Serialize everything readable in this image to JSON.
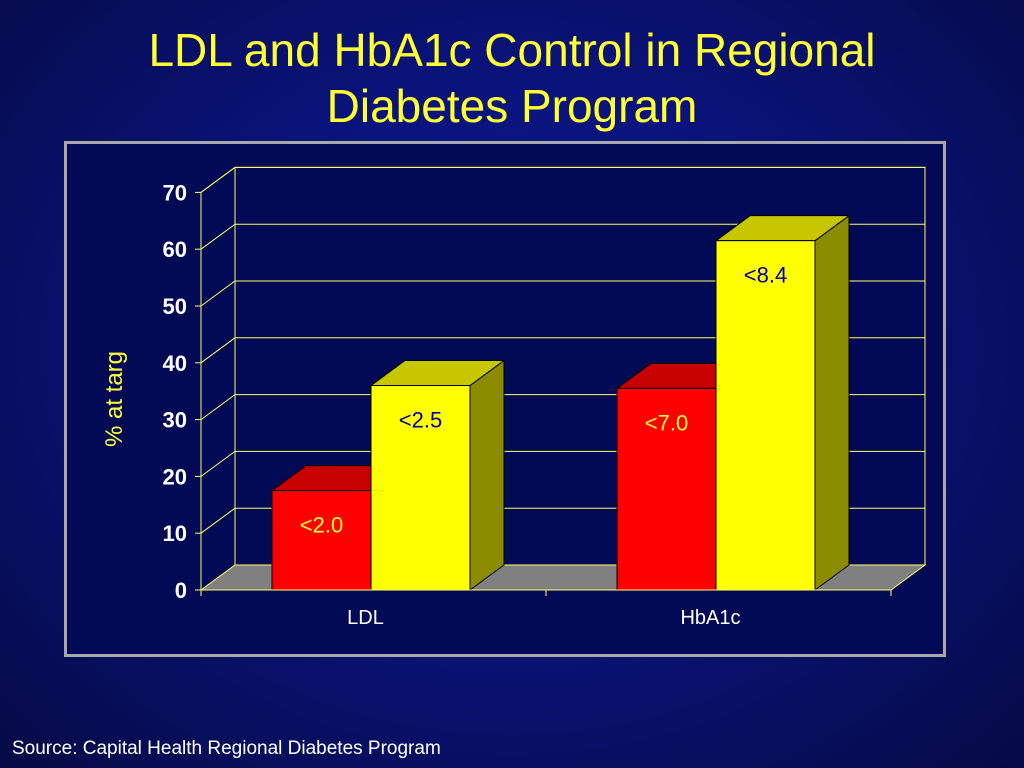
{
  "slide": {
    "title_line1": "LDL and HbA1c Control in Regional",
    "title_line2": "Diabetes Program",
    "source": "Source: Capital Health Regional Diabetes Program"
  },
  "chart_data": {
    "type": "bar",
    "title": "LDL and HbA1c Control in Regional Diabetes Program",
    "ylabel": "% at targ",
    "xlabel": "",
    "categories": [
      "LDL",
      "HbA1c"
    ],
    "ylim": [
      0,
      70
    ],
    "yticks": [
      0,
      10,
      20,
      30,
      40,
      50,
      60,
      70
    ],
    "grid": true,
    "series": [
      {
        "color": "#ff0000",
        "values": [
          17.5,
          35.5
        ],
        "labels": [
          "<2.0",
          "<7.0"
        ]
      },
      {
        "color": "#ffff00",
        "values": [
          36,
          61.5
        ],
        "labels": [
          "<2.5",
          "<8.4"
        ]
      }
    ],
    "colors": {
      "axis_text": "#ffffff",
      "gridline": "#ffff66",
      "floor": "#808080",
      "ylabel": "#ffff33",
      "label_on_red": "#ffff33",
      "label_on_yellow": "#0000aa"
    }
  }
}
